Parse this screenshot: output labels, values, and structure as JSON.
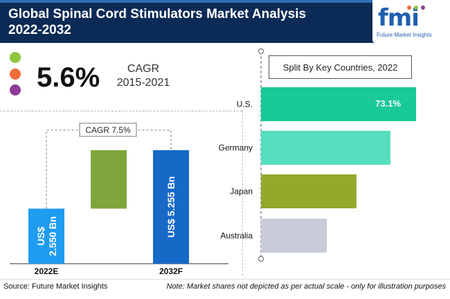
{
  "header": {
    "title_line1": "Global Spinal Cord Stimulators Market Analysis",
    "title_line2": "2022-2032",
    "logo_text": "fmi",
    "logo_sub": "Future Market Insights"
  },
  "cagr_summary": {
    "value": "5.6%",
    "label_line1": "CAGR",
    "label_line2": "2015-2021",
    "dot_colors": [
      "#8dc63f",
      "#f26b3a",
      "#8e3c97"
    ]
  },
  "footer": {
    "source": "Source: Future Market Insights",
    "note": "Note: Market shares not depicted as per actual scale - only for illustration purposes"
  },
  "chart_data": [
    {
      "type": "bar",
      "categories": [
        "2022E",
        "2032F"
      ],
      "values": [
        2.55,
        5.255
      ],
      "bar_labels": [
        "US$ 2.550 Bn",
        "US$ 5.255 Bn"
      ],
      "annotation": "CAGR 7.5%",
      "colors": [
        "#1f9bf0",
        "#1769c7",
        "#7ea63c"
      ]
    },
    {
      "type": "bar",
      "title": "Split By Key Countries, 2022",
      "orientation": "horizontal",
      "categories": [
        "U.S.",
        "Germany",
        "Japan",
        "Australia"
      ],
      "values": [
        73.1,
        61,
        45,
        31
      ],
      "value_labels": [
        "73.1%",
        "",
        "",
        ""
      ],
      "colors": [
        "#19c99a",
        "#55dfbe",
        "#94a92c",
        "#c7ccd8"
      ]
    }
  ]
}
